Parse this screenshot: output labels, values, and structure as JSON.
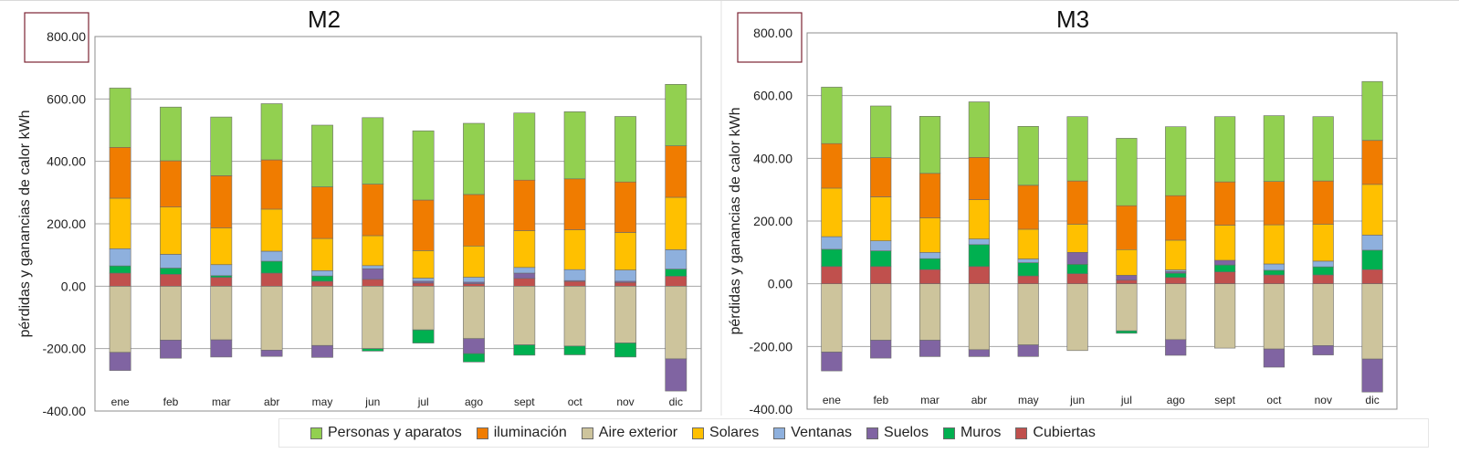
{
  "legend": [
    {
      "name": "Personas y aparatos",
      "color": "#92d050"
    },
    {
      "name": "iluminación",
      "color": "#f07c00"
    },
    {
      "name": "Aire exterior",
      "color": "#cdc49c"
    },
    {
      "name": "Solares",
      "color": "#ffc000"
    },
    {
      "name": "Ventanas",
      "color": "#8eb0dd"
    },
    {
      "name": "Suelos",
      "color": "#8064a2"
    },
    {
      "name": "Muros",
      "color": "#00b050"
    },
    {
      "name": "Cubiertas",
      "color": "#c0504d"
    }
  ],
  "chart_data": [
    {
      "type": "bar",
      "stacked": true,
      "title": "M2",
      "ylabel": "pérdidas y ganancias de calor kWh",
      "ylim": [
        -400,
        800
      ],
      "yticks": [
        -400,
        -200,
        0,
        200,
        400,
        600,
        800
      ],
      "ytick_labels": [
        "-400.00",
        "-200.00",
        "0.00",
        "200.00",
        "400.00",
        "600.00",
        "800.00"
      ],
      "grid": true,
      "categories": [
        "ene",
        "feb",
        "mar",
        "abr",
        "may",
        "jun",
        "jul",
        "ago",
        "sept",
        "oct",
        "nov",
        "dic"
      ],
      "series": [
        {
          "name": "Aire exterior",
          "values": [
            -212,
            -173,
            -172,
            -205,
            -190,
            -200,
            -140,
            -168,
            -188,
            -192,
            -182,
            -233
          ]
        },
        {
          "name": "Suelos",
          "values": [
            -58,
            -58,
            -55,
            -20,
            -38,
            0,
            0,
            -48,
            0,
            0,
            0,
            -103
          ]
        },
        {
          "name": "Muros",
          "values": [
            0,
            0,
            0,
            0,
            0,
            -8,
            -42,
            -27,
            -33,
            -28,
            -45,
            0
          ]
        },
        {
          "name": "Cubiertas",
          "values": [
            42,
            38,
            28,
            42,
            16,
            22,
            10,
            8,
            25,
            15,
            12,
            32
          ]
        },
        {
          "name": "Muros",
          "values": [
            23,
            20,
            6,
            38,
            17,
            0,
            0,
            0,
            0,
            0,
            0,
            23
          ]
        },
        {
          "name": "Suelos",
          "values": [
            0,
            0,
            0,
            0,
            0,
            34,
            6,
            5,
            17,
            3,
            4,
            0
          ]
        },
        {
          "name": "Ventanas",
          "values": [
            55,
            44,
            35,
            32,
            17,
            10,
            10,
            16,
            18,
            35,
            36,
            62
          ]
        },
        {
          "name": "Solares",
          "values": [
            162,
            152,
            118,
            135,
            103,
            96,
            88,
            100,
            118,
            128,
            120,
            168
          ]
        },
        {
          "name": "iluminación",
          "values": [
            163,
            148,
            167,
            158,
            165,
            165,
            162,
            165,
            162,
            163,
            162,
            165
          ]
        },
        {
          "name": "Personas y aparatos",
          "values": [
            190,
            172,
            188,
            180,
            198,
            213,
            222,
            228,
            215,
            215,
            210,
            197
          ]
        }
      ]
    },
    {
      "type": "bar",
      "stacked": true,
      "title": "M3",
      "ylabel": "pérdidas y ganancias de calor kWh",
      "ylim": [
        -400,
        800
      ],
      "yticks": [
        -400,
        -200,
        0,
        200,
        400,
        600,
        800
      ],
      "ytick_labels": [
        "-400.00",
        "-200.00",
        "0.00",
        "200.00",
        "400.00",
        "600.00",
        "800.00"
      ],
      "grid": true,
      "categories": [
        "ene",
        "feb",
        "mar",
        "abr",
        "may",
        "jun",
        "jul",
        "ago",
        "sept",
        "oct",
        "nov",
        "dic"
      ],
      "series": [
        {
          "name": "Aire exterior",
          "values": [
            -218,
            -180,
            -180,
            -210,
            -195,
            -213,
            -150,
            -178,
            -205,
            -208,
            -197,
            -240
          ]
        },
        {
          "name": "Suelos",
          "values": [
            -60,
            -57,
            -52,
            -22,
            -37,
            0,
            0,
            -50,
            0,
            -58,
            -30,
            -105
          ]
        },
        {
          "name": "Muros",
          "values": [
            0,
            0,
            0,
            0,
            0,
            0,
            -8,
            0,
            0,
            0,
            0,
            0
          ]
        },
        {
          "name": "Cubiertas",
          "values": [
            55,
            55,
            45,
            55,
            25,
            32,
            12,
            20,
            38,
            28,
            28,
            45
          ]
        },
        {
          "name": "Muros",
          "values": [
            55,
            50,
            35,
            70,
            42,
            30,
            0,
            14,
            22,
            15,
            26,
            62
          ]
        },
        {
          "name": "Suelos",
          "values": [
            0,
            0,
            0,
            0,
            0,
            38,
            15,
            5,
            15,
            0,
            0,
            0
          ]
        },
        {
          "name": "Ventanas",
          "values": [
            40,
            32,
            20,
            18,
            12,
            0,
            0,
            5,
            0,
            20,
            18,
            48
          ]
        },
        {
          "name": "Solares",
          "values": [
            155,
            140,
            110,
            125,
            95,
            90,
            82,
            95,
            112,
            125,
            118,
            162
          ]
        },
        {
          "name": "iluminación",
          "values": [
            142,
            125,
            142,
            135,
            140,
            138,
            140,
            142,
            138,
            138,
            138,
            140
          ]
        },
        {
          "name": "Personas y aparatos",
          "values": [
            180,
            165,
            182,
            177,
            188,
            205,
            215,
            220,
            208,
            210,
            205,
            188
          ]
        }
      ]
    }
  ]
}
